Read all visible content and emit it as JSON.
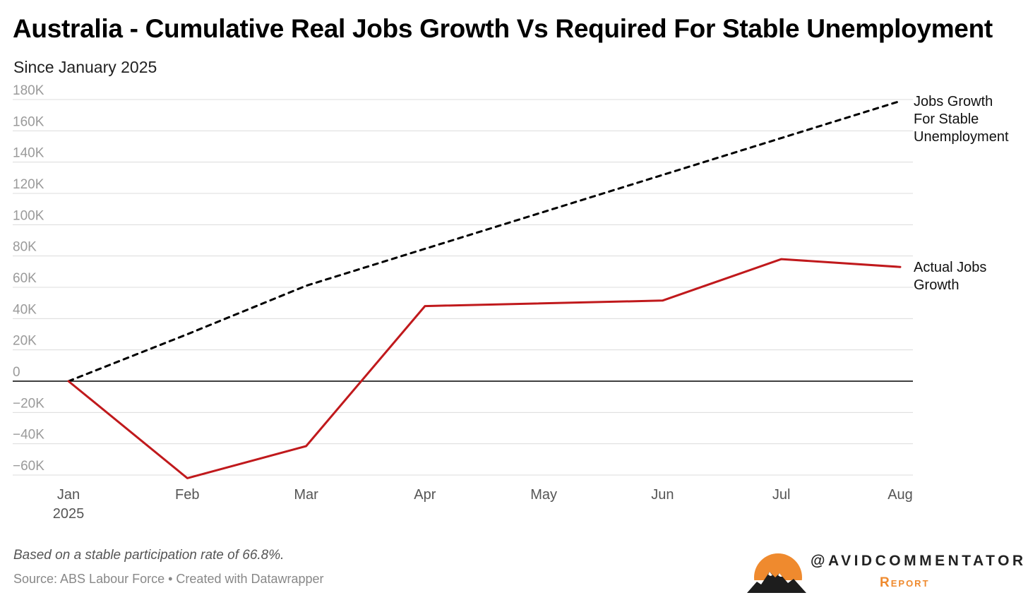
{
  "chart_data": {
    "type": "line",
    "title": "Australia - Cumulative Real Jobs Growth Vs Required For Stable Unemployment",
    "subtitle": "Since January 2025",
    "categories": [
      "Jan 2025",
      "Feb",
      "Mar",
      "Apr",
      "May",
      "Jun",
      "Jul",
      "Aug"
    ],
    "x_tick_labels": [
      {
        "line1": "Jan",
        "line2": "2025"
      },
      {
        "line1": "Feb"
      },
      {
        "line1": "Mar"
      },
      {
        "line1": "Apr"
      },
      {
        "line1": "May"
      },
      {
        "line1": "Jun"
      },
      {
        "line1": "Jul"
      },
      {
        "line1": "Aug"
      }
    ],
    "y_ticks": [
      -60000,
      -40000,
      -20000,
      0,
      20000,
      40000,
      60000,
      80000,
      100000,
      120000,
      140000,
      160000,
      180000
    ],
    "y_tick_labels": [
      "−60K",
      "−40K",
      "−20K",
      "0",
      "20K",
      "40K",
      "60K",
      "80K",
      "100K",
      "120K",
      "140K",
      "160K",
      "180K"
    ],
    "ylim": [
      -60000,
      180000
    ],
    "grid": true,
    "series": [
      {
        "name": "Jobs Growth For Stable Unemployment",
        "label_lines": [
          "Jobs Growth",
          "For Stable",
          "Unemployment"
        ],
        "style": "dashed",
        "color": "#000000",
        "x": [
          0,
          1,
          2,
          7
        ],
        "values": [
          0,
          30000,
          61000,
          179000
        ]
      },
      {
        "name": "Actual Jobs Growth",
        "label_lines": [
          "Actual Jobs",
          "Growth"
        ],
        "style": "solid",
        "color": "#c0191c",
        "x": [
          0,
          1,
          2,
          3,
          5,
          6,
          7
        ],
        "values": [
          0,
          -62000,
          -41500,
          48000,
          51500,
          78000,
          73000
        ]
      }
    ],
    "note": "Based on a stable participation rate of 66.8%.",
    "source": "Source: ABS Labour Force • Created with Datawrapper"
  },
  "brand": {
    "name": "@AVIDCOMMENTATOR",
    "sub": "Report",
    "logo_icon": "mountain-sun-icon",
    "accent_color": "#ef8a2e"
  }
}
